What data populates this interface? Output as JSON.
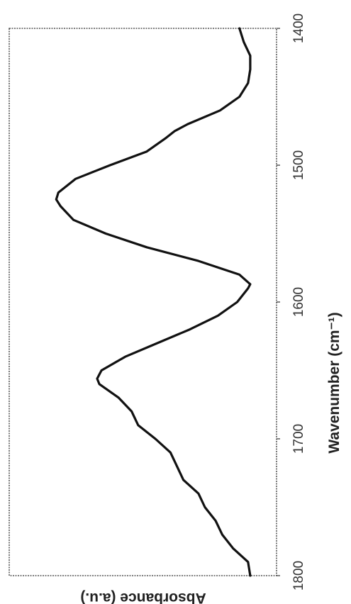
{
  "chart_data": {
    "type": "line",
    "orientation": "rotated-90-clockwise",
    "title": "",
    "xlabel": "Wavenumber (cm⁻¹)",
    "ylabel": "Absorbance (a.u.)",
    "xlim": [
      1800,
      1400
    ],
    "x_ticks": [
      "1800",
      "1700",
      "1600",
      "1500",
      "1400"
    ],
    "ylim": [
      0,
      1
    ],
    "grid": false,
    "series": [
      {
        "x": [
          1800,
          1790,
          1780,
          1770,
          1760,
          1750,
          1740,
          1730,
          1720,
          1710,
          1700,
          1690,
          1680,
          1670,
          1660,
          1656,
          1650,
          1640,
          1630,
          1620,
          1610,
          1600,
          1590,
          1587,
          1580,
          1570,
          1560,
          1550,
          1540,
          1530,
          1525,
          1520,
          1510,
          1500,
          1490,
          1480,
          1475,
          1470,
          1460,
          1450,
          1440,
          1430,
          1420,
          1410,
          1400
        ],
        "y": [
          0.03,
          0.04,
          0.11,
          0.16,
          0.19,
          0.24,
          0.27,
          0.34,
          0.37,
          0.4,
          0.47,
          0.55,
          0.58,
          0.64,
          0.73,
          0.74,
          0.72,
          0.61,
          0.46,
          0.31,
          0.18,
          0.09,
          0.04,
          0.03,
          0.08,
          0.27,
          0.51,
          0.7,
          0.85,
          0.91,
          0.93,
          0.92,
          0.84,
          0.68,
          0.51,
          0.42,
          0.38,
          0.32,
          0.17,
          0.08,
          0.04,
          0.03,
          0.03,
          0.06,
          0.08
        ]
      }
    ]
  }
}
